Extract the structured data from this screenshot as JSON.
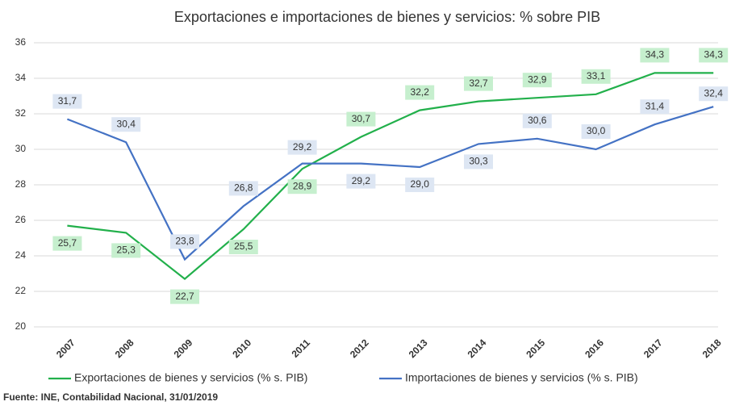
{
  "chart_data": {
    "type": "line",
    "title": "Exportaciones e importaciones de bienes y servicios: % sobre PIB",
    "categories": [
      "2007",
      "2008",
      "2009",
      "2010",
      "2011",
      "2012",
      "2013",
      "2014",
      "2015",
      "2016",
      "2017",
      "2018"
    ],
    "series": [
      {
        "name": "Exportaciones de bienes y servicios (% s. PIB)",
        "color": "#22b04b",
        "values": [
          25.7,
          25.3,
          22.7,
          25.5,
          28.9,
          30.7,
          32.2,
          32.7,
          32.9,
          33.1,
          34.3,
          34.3
        ],
        "value_labels": [
          "25,7",
          "25,3",
          "22,7",
          "25,5",
          "28,9",
          "30,7",
          "32,2",
          "32,7",
          "32,9",
          "33,1",
          "34,3",
          "34,3"
        ]
      },
      {
        "name": "Importaciones de bienes y servicios (% s. PIB)",
        "color": "#4472c4",
        "values": [
          31.7,
          30.4,
          23.8,
          26.8,
          29.2,
          29.2,
          29.0,
          30.3,
          30.6,
          30.0,
          31.4,
          32.4
        ],
        "value_labels": [
          "31,7",
          "30,4",
          "23,8",
          "26,8",
          "29,2",
          "29,2",
          "29,0",
          "30,3",
          "30,6",
          "30,0",
          "31,4",
          "32,4"
        ]
      }
    ],
    "ylim": [
      20,
      36
    ],
    "yticks": [
      20,
      22,
      24,
      26,
      28,
      30,
      32,
      34,
      36
    ],
    "grid": true,
    "legend": "bottom",
    "source": "Fuente: INE, Contabilidad Nacional, 31/01/2019"
  }
}
